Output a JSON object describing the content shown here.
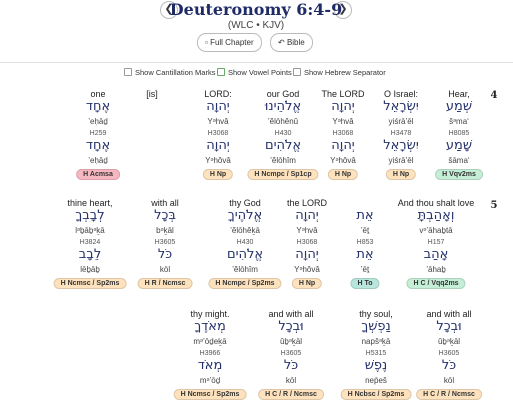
{
  "header": {
    "title": "Deuteronomy 6:4-9",
    "subtitle": "(WLC • KJV)",
    "buttons": [
      "Full Chapter",
      "Bible"
    ]
  },
  "options": [
    "Show Cantillation Marks",
    "Show Vowel Points",
    "Show Hebrew Separator"
  ],
  "verses": [
    {
      "number": "4",
      "words": [
        {
          "english": "Hear,",
          "hebrew": "שְׁמַע",
          "translit": "šᵊma‘",
          "strong": "H8085",
          "lemma": "שָׁמַע",
          "lemma_translit": "šāma‘",
          "morph": "H Vqv2ms",
          "tag_color": "#c5eed6"
        },
        {
          "english": "O Israel:",
          "hebrew": "יִשְׂרָאֵל",
          "translit": "yiśrā’ēl",
          "strong": "H3478",
          "lemma": "יִשְׂרָאֵל",
          "lemma_translit": "yiśrā’ēl",
          "morph": "H Np",
          "tag_color": "#fde2bd"
        },
        {
          "english": "The LORD",
          "hebrew": "יְהוָה",
          "translit": "Yᵊhvâ",
          "strong": "H3068",
          "lemma": "יְהוָה",
          "lemma_translit": "Yᵊhôvâ",
          "morph": "H Np",
          "tag_color": "#fde2bd"
        },
        {
          "english": "our God",
          "hebrew": "אֱלֹהֵינוּ",
          "translit": "’ĕlōhênû",
          "strong": "H430",
          "lemma": "אֱלֹהִים",
          "lemma_translit": "’ĕlōhîm",
          "morph": "H Ncmpc / Sp1cp",
          "tag_color": "#fde2bd"
        },
        {
          "english": "LORD:",
          "hebrew": "יְהוָה",
          "translit": "Yᵊhvâ",
          "strong": "H3068",
          "lemma": "יְהוָה",
          "lemma_translit": "Yᵊhôvâ",
          "morph": "H Np",
          "tag_color": "#fde2bd"
        },
        {
          "english": "[is]"
        },
        {
          "english": "one",
          "hebrew": "אֶחָד",
          "translit": "’eḥāḏ",
          "strong": "H259",
          "lemma": "אֶחָד",
          "lemma_translit": "’eḥāḏ",
          "morph": "H Acmsa",
          "tag_color": "#f7b7c0"
        }
      ]
    },
    {
      "number": "5",
      "words": [
        {
          "english": "And thou shalt love",
          "hebrew": "וְאָהַבְתָּ",
          "translit": "vᵊ’āhaḇtā",
          "strong": "H157",
          "lemma": "אָהַב",
          "lemma_translit": "’āhaḇ",
          "morph": "H C / Vqq2ms",
          "tag_color": "#c5eed6"
        },
        {
          "hebrew": "אֵת",
          "translit": "’ēṯ",
          "strong": "H853",
          "lemma": "אֵת",
          "lemma_translit": "’ēṯ",
          "morph": "H To",
          "tag_color": "#b8e6dc"
        },
        {
          "english": "the LORD",
          "hebrew": "יְהוָה",
          "translit": "Yᵊhvâ",
          "strong": "H3068",
          "lemma": "יְהוָה",
          "lemma_translit": "Yᵊhôvâ",
          "morph": "H Np",
          "tag_color": "#fde2bd"
        },
        {
          "english": "thy God",
          "hebrew": "אֱלֹהֶיךָ",
          "translit": "’ĕlōhêḵā",
          "strong": "H430",
          "lemma": "אֱלֹהִים",
          "lemma_translit": "’ĕlōhîm",
          "morph": "H Ncmpc / Sp2ms",
          "tag_color": "#fde2bd"
        },
        {
          "english": "with all",
          "hebrew": "בְּכָל",
          "translit": "bᵊḵāl",
          "strong": "H3605",
          "lemma": "כֹּל",
          "lemma_translit": "kōl",
          "morph": "H R / Ncmsc",
          "tag_color": "#fde2bd"
        },
        {
          "english": "thine heart,",
          "hebrew": "לְבָבְךָ",
          "translit": "lᵊḇāḇᵊḵā",
          "strong": "H3824",
          "lemma": "לֵבָב",
          "lemma_translit": "lēḇāḇ",
          "morph": "H Ncmsc / Sp2ms",
          "tag_color": "#fde2bd"
        },
        {
          "english": "and with all",
          "hebrew": "וּבְכָל",
          "translit": "ûḇᵊḵāl",
          "strong": "H3605",
          "lemma": "כֹּל",
          "lemma_translit": "kōl",
          "morph": "H C / R / Ncmsc",
          "tag_color": "#fde2bd"
        },
        {
          "english": "thy soul,",
          "hebrew": "נַפְשְׁךָ",
          "translit": "napšᵊḵā",
          "strong": "H5315",
          "lemma": "נֶפֶשׁ",
          "lemma_translit": "nep̄eš",
          "morph": "H Ncbsc / Sp2ms",
          "tag_color": "#fde2bd"
        },
        {
          "english": "and with all",
          "hebrew": "וּבְכָל",
          "translit": "ûḇᵊḵāl",
          "strong": "H3605",
          "lemma": "כֹּל",
          "lemma_translit": "kōl",
          "morph": "H C / R / Ncmsc",
          "tag_color": "#fde2bd"
        },
        {
          "english": "thy might.",
          "hebrew": "מְאֹדֶךָ",
          "translit": "mᵊ’ōḏeḵā",
          "strong": "H3966",
          "lemma": "מְאֹד",
          "lemma_translit": "mᵊ’ōḏ",
          "morph": "H Ncmsc / Sp2ms",
          "tag_color": "#fde2bd"
        }
      ]
    }
  ]
}
